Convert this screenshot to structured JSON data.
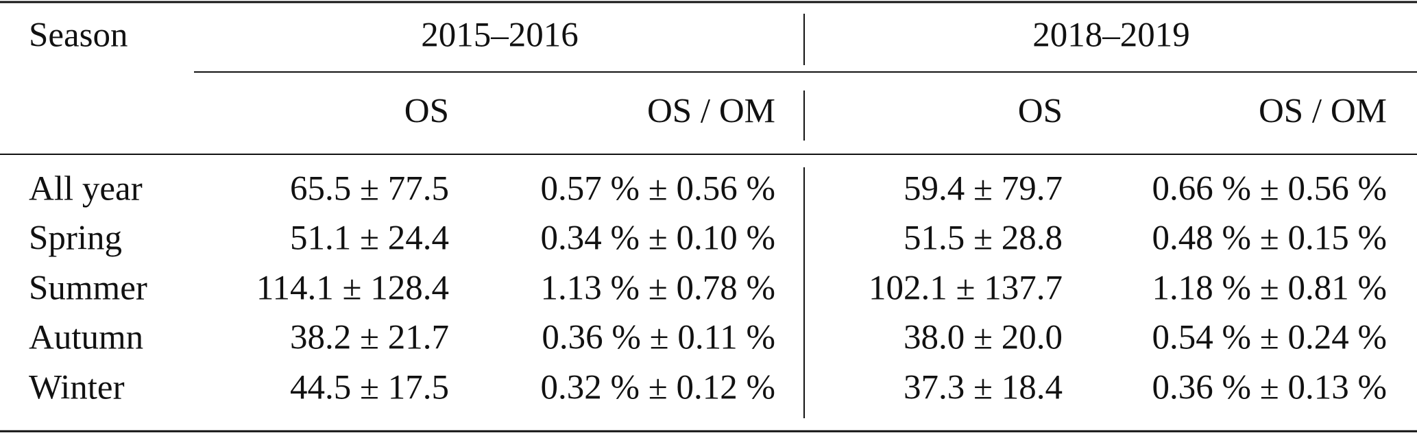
{
  "table": {
    "header": {
      "stub": "Season",
      "groups": [
        "2015–2016",
        "2018–2019"
      ],
      "columns": [
        "OS",
        "OS / OM",
        "OS",
        "OS / OM"
      ]
    },
    "rows": [
      [
        "All year",
        "65.5 ± 77.5",
        "0.57 % ± 0.56 %",
        "59.4 ± 79.7",
        "0.66 % ± 0.56 %"
      ],
      [
        "Spring",
        "51.1 ± 24.4",
        "0.34 % ± 0.10 %",
        "51.5 ± 28.8",
        "0.48 % ± 0.15 %"
      ],
      [
        "Summer",
        "114.1 ± 128.4",
        "1.13 % ± 0.78 %",
        "102.1 ± 137.7",
        "1.18 % ± 0.81 %"
      ],
      [
        "Autumn",
        "38.2 ± 21.7",
        "0.36 % ± 0.11 %",
        "38.0 ± 20.0",
        "0.54 % ± 0.24 %"
      ],
      [
        "Winter",
        "44.5 ± 17.5",
        "0.32 % ± 0.12 %",
        "37.3 ± 18.4",
        "0.36 % ± 0.13 %"
      ]
    ]
  }
}
